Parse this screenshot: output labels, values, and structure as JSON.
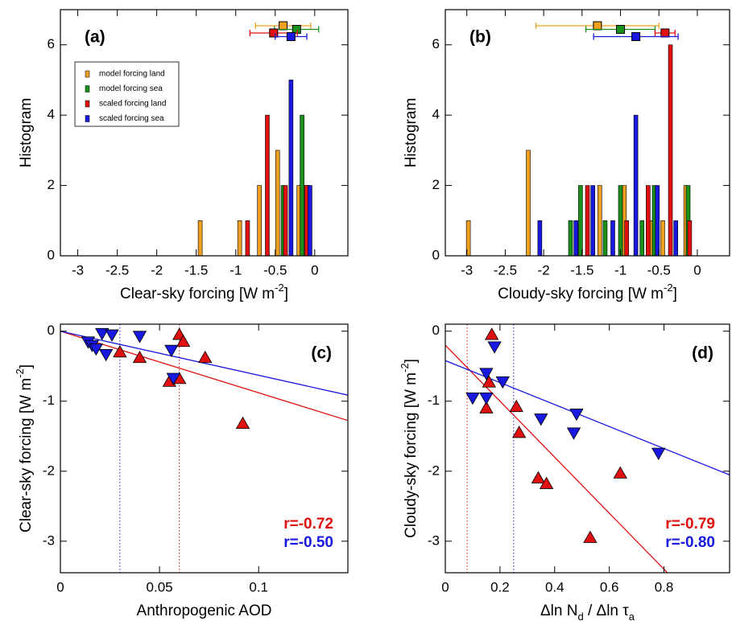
{
  "chart_data": [
    {
      "type": "histogram",
      "panel": "(a)",
      "x_label": [
        "Clear-sky forcing [W m",
        "-2",
        "]"
      ],
      "x_label_script": "super",
      "y_label": [
        "Histogram"
      ],
      "xlim": [
        -3.22,
        0.42
      ],
      "ylim": [
        0,
        7
      ],
      "xticks": [
        -3,
        -2.5,
        -2,
        -1.5,
        -1,
        -0.5,
        0
      ],
      "yticks": [
        0,
        2,
        4,
        6
      ],
      "legend": "upper left",
      "series": [
        {
          "name": "model forcing land",
          "color": "#f0a020",
          "x": [
            -1.45,
            -0.95,
            -0.7,
            -0.47,
            -0.2,
            -0.12
          ],
          "values": [
            1,
            1,
            2,
            3,
            2,
            2
          ],
          "mean": -0.4,
          "mean_err": 0.35
        },
        {
          "name": "model forcing sea",
          "color": "#18901a",
          "x": [
            -0.4,
            -0.16,
            -0.08
          ],
          "values": [
            2,
            4,
            2
          ],
          "mean": -0.23,
          "mean_err": 0.28
        },
        {
          "name": "scaled forcing land",
          "color": "#e01010",
          "x": [
            -0.85,
            -0.6,
            -0.37,
            -0.1
          ],
          "values": [
            1,
            4,
            2,
            2
          ],
          "mean": -0.52,
          "mean_err": 0.3
        },
        {
          "name": "scaled forcing sea",
          "color": "#1818e0",
          "x": [
            -0.3,
            -0.06
          ],
          "values": [
            5,
            2
          ],
          "mean": -0.3,
          "mean_err": 0.2
        }
      ]
    },
    {
      "type": "histogram",
      "panel": "(b)",
      "x_label": [
        "Cloudy-sky forcing [W m",
        "-2",
        "]"
      ],
      "x_label_script": "super",
      "y_label": [
        "Histogram"
      ],
      "xlim": [
        -3.28,
        0.42
      ],
      "ylim": [
        0,
        7
      ],
      "xticks": [
        -3,
        -2.5,
        -2,
        -1.5,
        -1,
        -0.5,
        0
      ],
      "yticks": [
        0,
        2,
        4,
        6
      ],
      "series": [
        {
          "name": "model forcing land",
          "color": "#f0a020",
          "x": [
            -2.98,
            -2.2,
            -1.27,
            -0.95,
            -0.6,
            -0.45,
            -0.15
          ],
          "values": [
            1,
            3,
            2,
            2,
            1,
            1,
            2
          ],
          "mean": -1.3,
          "mean_err": 0.8
        },
        {
          "name": "model forcing sea",
          "color": "#18901a",
          "x": [
            -1.65,
            -1.52,
            -1.2,
            -1.0,
            -0.72,
            -0.56,
            -0.12
          ],
          "values": [
            1,
            2,
            1,
            2,
            1,
            2,
            2
          ],
          "mean": -1.0,
          "mean_err": 0.45
        },
        {
          "name": "scaled forcing land",
          "color": "#e01010",
          "x": [
            -1.43,
            -0.92,
            -0.64,
            -0.35,
            -0.1
          ],
          "values": [
            2,
            1,
            2,
            6,
            1
          ],
          "mean": -0.42,
          "mean_err": 0.13
        },
        {
          "name": "scaled forcing sea",
          "color": "#1818e0",
          "x": [
            -2.05,
            -1.58,
            -1.36,
            -1.1,
            -0.8,
            -0.52,
            -0.28
          ],
          "values": [
            1,
            1,
            2,
            1,
            4,
            2,
            1
          ],
          "mean": -0.8,
          "mean_err": 0.55
        }
      ]
    },
    {
      "type": "scatter",
      "panel": "(c)",
      "x_label": [
        "Anthropogenic AOD"
      ],
      "y_label": [
        "Clear-sky forcing [W m",
        "-2",
        "]"
      ],
      "y_label_script": "super",
      "xlim": [
        0,
        0.145
      ],
      "ylim": [
        -3.45,
        0.1
      ],
      "xticks": [
        0,
        0.05,
        0.1
      ],
      "yticks": [
        0,
        -1,
        -2,
        -3
      ],
      "series": [
        {
          "color": "#e01010",
          "marker": "triangle-up",
          "x": [
            0.03,
            0.04,
            0.055,
            0.06,
            0.06,
            0.062,
            0.073,
            0.092
          ],
          "values": [
            -0.3,
            -0.38,
            -0.72,
            -0.68,
            -0.05,
            -0.15,
            -0.38,
            -1.32
          ],
          "fit": {
            "slope": -8.8,
            "intercept": 0
          },
          "mean_x": 0.06,
          "r_label": "r=-0.72"
        },
        {
          "color": "#1818e0",
          "marker": "triangle-down",
          "x": [
            0.014,
            0.016,
            0.018,
            0.021,
            0.023,
            0.026,
            0.04,
            0.056,
            0.057
          ],
          "values": [
            -0.15,
            -0.2,
            -0.25,
            -0.03,
            -0.33,
            -0.05,
            -0.07,
            -0.27,
            -0.67
          ],
          "fit": {
            "slope": -6.3,
            "intercept": 0
          },
          "mean_x": 0.03,
          "r_label": "r=-0.50"
        }
      ]
    },
    {
      "type": "scatter",
      "panel": "(d)",
      "x_label": [
        "Δln N",
        "d",
        " / Δln τ",
        "a"
      ],
      "x_label_script": "sub",
      "y_label": [
        "Cloudy-sky forcing [W m",
        "-2",
        "]"
      ],
      "y_label_script": "super",
      "xlim": [
        0,
        1.04
      ],
      "ylim": [
        -3.45,
        0.1
      ],
      "xticks": [
        0,
        0.2,
        0.4,
        0.6,
        0.8
      ],
      "yticks": [
        0,
        -1,
        -2,
        -3
      ],
      "series": [
        {
          "color": "#e01010",
          "marker": "triangle-up",
          "x": [
            0.17,
            0.16,
            0.15,
            0.26,
            0.27,
            0.34,
            0.37,
            0.53,
            0.64
          ],
          "values": [
            -0.05,
            -0.73,
            -1.1,
            -1.08,
            -1.45,
            -2.1,
            -2.18,
            -2.95,
            -2.03
          ],
          "fit": {
            "slope": -4.0,
            "intercept": -0.2
          },
          "mean_x": 0.08,
          "r_label": "r=-0.79"
        },
        {
          "color": "#1818e0",
          "marker": "triangle-down",
          "x": [
            0.18,
            0.15,
            0.21,
            0.1,
            0.15,
            0.35,
            0.48,
            0.47,
            0.78
          ],
          "values": [
            -0.22,
            -0.6,
            -0.72,
            -0.95,
            -0.95,
            -1.25,
            -1.18,
            -1.45,
            -1.74
          ],
          "fit": {
            "slope": -1.57,
            "intercept": -0.42
          },
          "mean_x": 0.25,
          "r_label": "r=-0.80"
        }
      ]
    }
  ]
}
